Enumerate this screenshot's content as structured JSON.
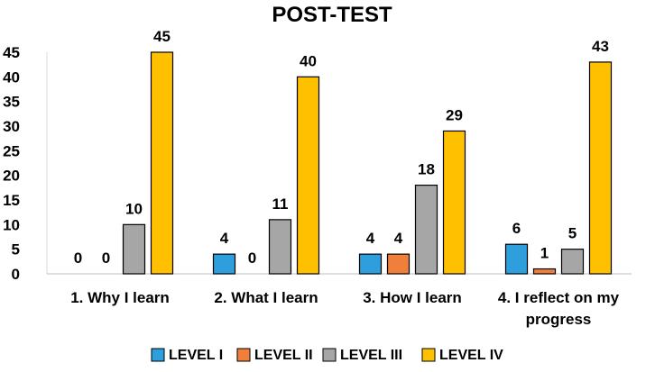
{
  "chart_data": {
    "type": "bar",
    "title": "POST-TEST",
    "xlabel": "",
    "ylabel": "",
    "ylim": [
      0,
      45
    ],
    "yticks": [
      0,
      5,
      10,
      15,
      20,
      25,
      30,
      35,
      40,
      45
    ],
    "grid": false,
    "legend_position": "bottom",
    "categories": [
      [
        "1. Why I learn"
      ],
      [
        "2. What I learn"
      ],
      [
        "3. How I learn"
      ],
      [
        "4. I reflect on my",
        "progress"
      ]
    ],
    "series": [
      {
        "name": "LEVEL I",
        "color": "#2E9FDC",
        "values": [
          0,
          4,
          4,
          6
        ]
      },
      {
        "name": "LEVEL II",
        "color": "#F07F3C",
        "values": [
          0,
          0,
          4,
          1
        ]
      },
      {
        "name": "LEVEL III",
        "color": "#A6A6A6",
        "values": [
          10,
          11,
          18,
          5
        ]
      },
      {
        "name": "LEVEL IV",
        "color": "#FFC000",
        "values": [
          45,
          40,
          29,
          43
        ]
      }
    ],
    "data_labels": [
      [
        "0",
        "4",
        "4",
        "6"
      ],
      [
        "0",
        "0",
        "4",
        "1"
      ],
      [
        "10",
        "11",
        "18",
        "5"
      ],
      [
        "45",
        "40",
        "29",
        "43"
      ]
    ]
  }
}
